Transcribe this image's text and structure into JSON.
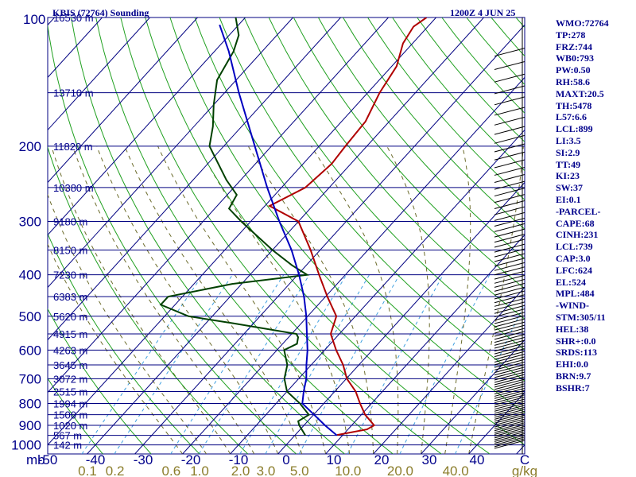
{
  "header": {
    "station": "KBIS (72764) Sounding",
    "time": "1200Z  4 JUN 25"
  },
  "chart_data": {
    "type": "skew-t",
    "pressure_levels": [
      100,
      200,
      300,
      400,
      500,
      600,
      700,
      800,
      900,
      1000
    ],
    "height_labels": [
      {
        "p": 100,
        "text": "16530 m"
      },
      {
        "p": 150,
        "text": "13710 m"
      },
      {
        "p": 200,
        "text": "11820 m"
      },
      {
        "p": 250,
        "text": "10380 m"
      },
      {
        "p": 300,
        "text": "9180 m"
      },
      {
        "p": 350,
        "text": "8150 m"
      },
      {
        "p": 400,
        "text": "7230 m"
      },
      {
        "p": 450,
        "text": "6383 m"
      },
      {
        "p": 500,
        "text": "5620 m"
      },
      {
        "p": 550,
        "text": "4915 m"
      },
      {
        "p": 600,
        "text": "4263 m"
      },
      {
        "p": 650,
        "text": "3645 m"
      },
      {
        "p": 700,
        "text": "3072 m"
      },
      {
        "p": 750,
        "text": "2515 m"
      },
      {
        "p": 800,
        "text": "1994 m"
      },
      {
        "p": 850,
        "text": "1500 m"
      },
      {
        "p": 900,
        "text": "1020 m"
      },
      {
        "p": 950,
        "text": "567 m"
      },
      {
        "p": 1000,
        "text": "142 m"
      }
    ],
    "x_unit_label": "mb",
    "temperature_ticks": [
      "-50",
      "-40",
      "-30",
      "-20",
      "-10",
      "0",
      "10",
      "20",
      "30",
      "40",
      "C"
    ],
    "mixing_ratio_ticks": [
      "0.1",
      "0.2",
      "0.6",
      "1.0",
      "2.0",
      "3.0",
      "5.0",
      "10.0",
      "20.0",
      "40.0",
      "g/kg"
    ],
    "xlim_celsius_at_1000mb": [
      -50,
      50
    ],
    "ylim_mb": [
      100,
      1050
    ],
    "series": [
      {
        "key": "temperature",
        "color": "#b00000",
        "points": [
          [
            948,
            8.8
          ],
          [
            920,
            14.0
          ],
          [
            900,
            14.7
          ],
          [
            850,
            10.8
          ],
          [
            800,
            7.6
          ],
          [
            750,
            4.4
          ],
          [
            700,
            0.1
          ],
          [
            650,
            -3.3
          ],
          [
            600,
            -7.6
          ],
          [
            550,
            -11.8
          ],
          [
            500,
            -14.0
          ],
          [
            450,
            -19.6
          ],
          [
            400,
            -25.5
          ],
          [
            350,
            -32.0
          ],
          [
            300,
            -40.0
          ],
          [
            276,
            -49.0
          ],
          [
            250,
            -45.0
          ],
          [
            220,
            -44.0
          ],
          [
            200,
            -44.5
          ],
          [
            175,
            -45.0
          ],
          [
            150,
            -47.5
          ],
          [
            130,
            -49.0
          ],
          [
            115,
            -52.0
          ],
          [
            105,
            -53.0
          ],
          [
            100,
            -52.0
          ]
        ]
      },
      {
        "key": "dewpoint",
        "color": "#004000",
        "points": [
          [
            950,
            2.2
          ],
          [
            900,
            -1.0
          ],
          [
            880,
            -2.0
          ],
          [
            850,
            -1.0
          ],
          [
            800,
            -5.0
          ],
          [
            750,
            -10.0
          ],
          [
            700,
            -13.0
          ],
          [
            650,
            -15.0
          ],
          [
            600,
            -18.5
          ],
          [
            580,
            -17.0
          ],
          [
            560,
            -18.0
          ],
          [
            550,
            -19.0
          ],
          [
            520,
            -34.0
          ],
          [
            500,
            -45.0
          ],
          [
            470,
            -53.0
          ],
          [
            450,
            -53.0
          ],
          [
            420,
            -42.0
          ],
          [
            400,
            -28.0
          ],
          [
            380,
            -33.0
          ],
          [
            350,
            -40.0
          ],
          [
            300,
            -52.0
          ],
          [
            280,
            -57.0
          ],
          [
            260,
            -58.0
          ],
          [
            240,
            -63.0
          ],
          [
            200,
            -73.0
          ],
          [
            180,
            -76.0
          ],
          [
            160,
            -80.0
          ],
          [
            140,
            -84.0
          ],
          [
            120,
            -86.0
          ],
          [
            110,
            -88.0
          ],
          [
            100,
            -92.0
          ]
        ]
      },
      {
        "key": "parcel",
        "color": "#0000c0",
        "points": [
          [
            950,
            8.8
          ],
          [
            900,
            4.4
          ],
          [
            850,
            0.1
          ],
          [
            800,
            -4.5
          ],
          [
            750,
            -6.5
          ],
          [
            700,
            -8.4
          ],
          [
            650,
            -11.0
          ],
          [
            600,
            -13.6
          ],
          [
            550,
            -16.8
          ],
          [
            500,
            -20.3
          ],
          [
            450,
            -24.5
          ],
          [
            400,
            -29.7
          ],
          [
            350,
            -36.0
          ],
          [
            300,
            -44.0
          ],
          [
            250,
            -53.0
          ],
          [
            200,
            -63.5
          ],
          [
            150,
            -77.0
          ],
          [
            120,
            -87.0
          ],
          [
            104,
            -94.0
          ]
        ]
      }
    ]
  },
  "indices": [
    "WMO:72764",
    "TP:278",
    "FRZ:744",
    "WB0:793",
    "PW:0.50",
    "RH:58.6",
    "MAXT:20.5",
    "TH:5478",
    "L57:6.6",
    "LCL:899",
    "LI:3.5",
    "SI:2.9",
    "TT:49",
    "KI:23",
    "SW:37",
    "EI:0.1",
    "-PARCEL-",
    "CAPE:68",
    "CINH:231",
    "LCL:739",
    "CAP:3.0",
    "LFC:624",
    "EL:524",
    "MPL:484",
    "-WIND-",
    "STM:305/11",
    "HEL:38",
    "SHR+:0.0",
    "SRDS:113",
    "EHI:0.0",
    "BRN:9.7",
    "BSHR:7"
  ]
}
